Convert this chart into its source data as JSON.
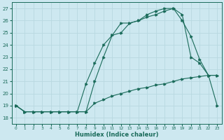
{
  "xlabel": "Humidex (Indice chaleur)",
  "bg_color": "#cde8f0",
  "grid_color": "#b8d8e0",
  "line_color": "#1a6b5a",
  "xlim": [
    -0.5,
    23.5
  ],
  "ylim": [
    17.5,
    27.5
  ],
  "xticks": [
    0,
    1,
    2,
    3,
    4,
    5,
    6,
    7,
    8,
    9,
    10,
    11,
    12,
    13,
    14,
    15,
    16,
    17,
    18,
    19,
    20,
    21,
    22,
    23
  ],
  "yticks": [
    18,
    19,
    20,
    21,
    22,
    23,
    24,
    25,
    26,
    27
  ],
  "line1_x": [
    0,
    1,
    2,
    3,
    4,
    5,
    6,
    7,
    8,
    9,
    10,
    11,
    12,
    13,
    14,
    15,
    16,
    17,
    18,
    19,
    20,
    21,
    22,
    23
  ],
  "line1_y": [
    19.0,
    18.5,
    18.5,
    18.5,
    18.5,
    18.5,
    18.5,
    18.5,
    18.5,
    21.0,
    23.0,
    24.8,
    25.8,
    25.8,
    26.0,
    26.5,
    26.8,
    27.0,
    27.0,
    26.5,
    23.0,
    22.5,
    21.5,
    21.5
  ],
  "line2_x": [
    0,
    1,
    2,
    3,
    4,
    5,
    6,
    7,
    8,
    9,
    10,
    11,
    12,
    13,
    14,
    15,
    16,
    17,
    18,
    19,
    20,
    21,
    22,
    23
  ],
  "line2_y": [
    19.0,
    18.5,
    18.5,
    18.5,
    18.5,
    18.5,
    18.5,
    18.5,
    20.8,
    22.5,
    24.0,
    24.8,
    25.0,
    25.8,
    26.0,
    26.3,
    26.5,
    26.8,
    27.0,
    26.0,
    24.7,
    22.8,
    21.5,
    19.0
  ],
  "line3_x": [
    0,
    1,
    2,
    3,
    4,
    5,
    6,
    7,
    8,
    9,
    10,
    11,
    12,
    13,
    14,
    15,
    16,
    17,
    18,
    19,
    20,
    21,
    22,
    23
  ],
  "line3_y": [
    19.0,
    18.5,
    18.5,
    18.5,
    18.5,
    18.5,
    18.5,
    18.5,
    18.5,
    19.2,
    19.5,
    19.8,
    20.0,
    20.2,
    20.4,
    20.5,
    20.7,
    20.8,
    21.0,
    21.2,
    21.3,
    21.4,
    21.5,
    21.5
  ]
}
